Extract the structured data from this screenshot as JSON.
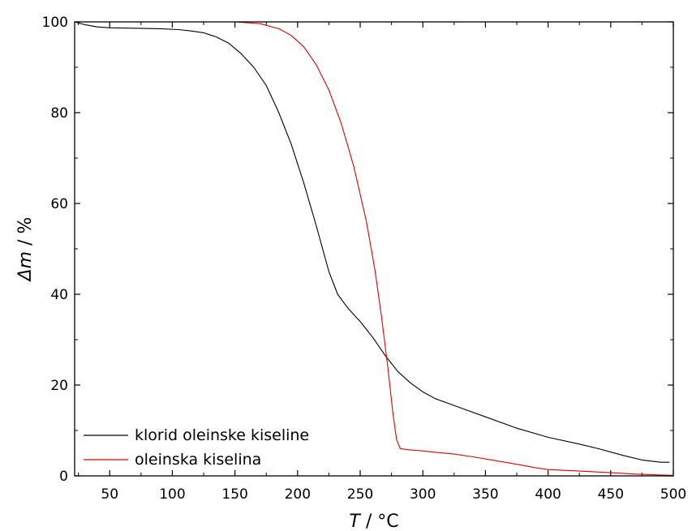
{
  "chart_data": {
    "type": "line",
    "title": "",
    "xlabel": {
      "symbol": "T",
      "unit": " / °C"
    },
    "ylabel": {
      "symbol": "Δm",
      "unit": " / %"
    },
    "xlim": [
      22,
      500
    ],
    "ylim": [
      0,
      100
    ],
    "xticks": [
      50,
      100,
      150,
      200,
      250,
      300,
      350,
      400,
      450,
      500
    ],
    "yticks": [
      0,
      20,
      40,
      60,
      80,
      100
    ],
    "grid": false,
    "legend_position": "bottom-left",
    "series": [
      {
        "name": "klorid oleinske kiseline",
        "color": "#000000",
        "points": [
          [
            22,
            100
          ],
          [
            30,
            99.4
          ],
          [
            40,
            98.9
          ],
          [
            50,
            98.7
          ],
          [
            70,
            98.6
          ],
          [
            90,
            98.5
          ],
          [
            105,
            98.3
          ],
          [
            115,
            98.0
          ],
          [
            125,
            97.6
          ],
          [
            135,
            96.7
          ],
          [
            145,
            95.3
          ],
          [
            155,
            93.0
          ],
          [
            165,
            90.0
          ],
          [
            175,
            86.0
          ],
          [
            185,
            80.0
          ],
          [
            195,
            73.0
          ],
          [
            205,
            64.5
          ],
          [
            215,
            55.0
          ],
          [
            220,
            50.0
          ],
          [
            225,
            45.0
          ],
          [
            232,
            40.0
          ],
          [
            240,
            37.0
          ],
          [
            250,
            34.0
          ],
          [
            260,
            30.5
          ],
          [
            270,
            26.5
          ],
          [
            280,
            23.0
          ],
          [
            290,
            20.5
          ],
          [
            300,
            18.5
          ],
          [
            310,
            17.0
          ],
          [
            320,
            16.0
          ],
          [
            330,
            15.0
          ],
          [
            350,
            13.0
          ],
          [
            375,
            10.5
          ],
          [
            400,
            8.5
          ],
          [
            425,
            7.0
          ],
          [
            440,
            6.0
          ],
          [
            460,
            4.5
          ],
          [
            475,
            3.5
          ],
          [
            490,
            3.0
          ],
          [
            497,
            3.0
          ]
        ]
      },
      {
        "name": "oleinska kiselina",
        "color": "#e00000",
        "points": [
          [
            115,
            100
          ],
          [
            150,
            100
          ],
          [
            170,
            99.6
          ],
          [
            185,
            98.5
          ],
          [
            195,
            97.0
          ],
          [
            205,
            94.5
          ],
          [
            215,
            90.5
          ],
          [
            225,
            85.0
          ],
          [
            235,
            77.5
          ],
          [
            245,
            68.0
          ],
          [
            255,
            56.0
          ],
          [
            262,
            45.0
          ],
          [
            267,
            35.0
          ],
          [
            272,
            24.0
          ],
          [
            276,
            14.0
          ],
          [
            279,
            8.0
          ],
          [
            282,
            6.0
          ],
          [
            290,
            5.7
          ],
          [
            300,
            5.5
          ],
          [
            310,
            5.2
          ],
          [
            325,
            4.8
          ],
          [
            340,
            4.2
          ],
          [
            355,
            3.5
          ],
          [
            370,
            2.8
          ],
          [
            390,
            1.8
          ],
          [
            400,
            1.4
          ],
          [
            415,
            1.2
          ],
          [
            430,
            1.0
          ],
          [
            450,
            0.7
          ],
          [
            470,
            0.4
          ],
          [
            490,
            0.2
          ],
          [
            500,
            0.1
          ]
        ]
      }
    ]
  }
}
